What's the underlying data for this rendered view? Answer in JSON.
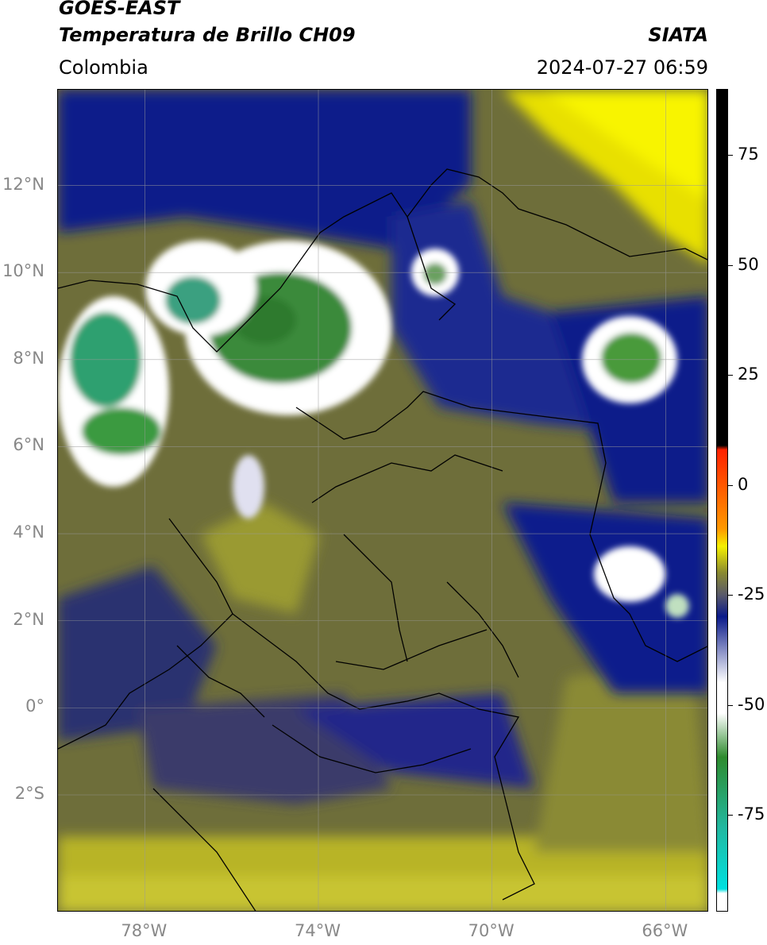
{
  "header": {
    "satellite": "GOES-EAST",
    "product": "Temperatura de Brillo CH09",
    "organization": "SIATA",
    "region": "Colombia",
    "datetime": "2024-07-27 06:59"
  },
  "map": {
    "lat_ticks": [
      "12°N",
      "10°N",
      "8°N",
      "6°N",
      "4°N",
      "2°N",
      "0°",
      "2°S"
    ],
    "lon_ticks": [
      "78°W",
      "74°W",
      "70°W",
      "66°W"
    ],
    "extent": {
      "lon_min": -80.0,
      "lon_max": -65.0,
      "lat_min": -4.7,
      "lat_max": 14.2
    },
    "grid": true
  },
  "colorbar": {
    "ticks": [
      "75",
      "50",
      "25",
      "0",
      "-25",
      "-50",
      "-75"
    ],
    "range": [
      -97,
      90
    ],
    "colors": {
      "black": "#000000",
      "red": "#ff2200",
      "orange": "#ff9900",
      "yellow": "#f5f000",
      "olive": "#8a8a30",
      "gray": "#5a5a6a",
      "navy": "#0a1a8a",
      "white": "#ffffff",
      "green": "#2e8b2e",
      "teal": "#22b8a0",
      "cyan": "#00e0e0"
    }
  }
}
